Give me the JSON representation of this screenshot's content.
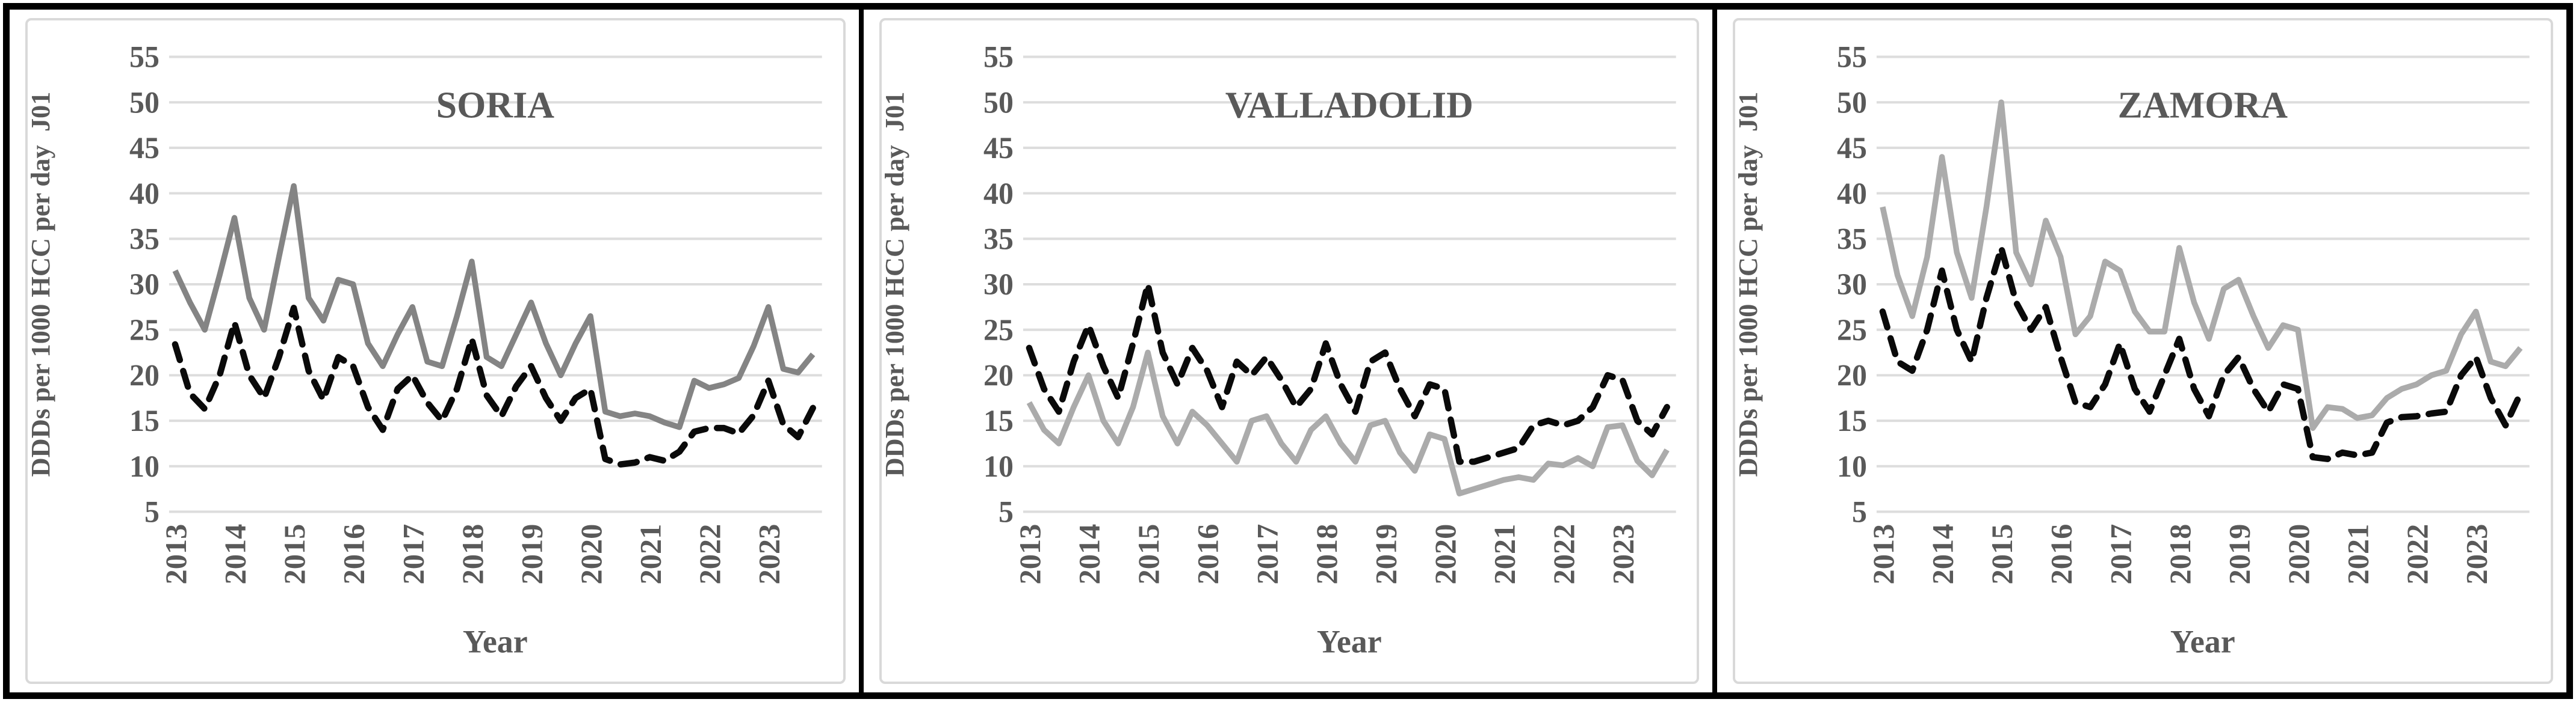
{
  "figure": {
    "background": "#ffffff",
    "outer_border_color": "#000000",
    "panel_frame_color": "#d9d9d9",
    "gridline_color": "#dddddd",
    "text_color": "#595959"
  },
  "chart_data": [
    {
      "type": "line",
      "title": "SORIA",
      "x_axis_title": "Year",
      "y_axis_title": "DDDs per 1000 HCC per day  J01",
      "ylim": [
        5,
        55
      ],
      "y_ticks": [
        55,
        50,
        45,
        40,
        35,
        30,
        25,
        20,
        15,
        10,
        5
      ],
      "x_tick_labels": [
        "2013",
        "2014",
        "2015",
        "2016",
        "2017",
        "2018",
        "2019",
        "2020",
        "2021",
        "2022",
        "2023"
      ],
      "points_per_year": 4,
      "grid": true,
      "legend_position": "none",
      "series": [
        {
          "name": "solid-gray-line",
          "line_style": "solid",
          "color": "#848484",
          "values": [
            31.5,
            28,
            25,
            31,
            37.3,
            28.5,
            25,
            33,
            40.8,
            28.5,
            26,
            30.5,
            30,
            23.5,
            21,
            24.5,
            27.5,
            21.5,
            21,
            26.5,
            32.5,
            22,
            21,
            24.5,
            28,
            23.5,
            20,
            23.5,
            26.5,
            16,
            15.5,
            15.8,
            15.5,
            14.8,
            14.3,
            19.4,
            18.6,
            19,
            19.7,
            23.2,
            27.5,
            20.7,
            20.3,
            22.3
          ]
        },
        {
          "name": "dashed-black-line",
          "line_style": "dashed",
          "color": "#0a0a0a",
          "values": [
            23.4,
            18,
            16.3,
            20,
            25.8,
            20,
            17.5,
            22,
            27.4,
            20.5,
            17.3,
            22,
            21,
            16.5,
            14,
            18.5,
            20,
            17,
            15,
            18.5,
            24,
            17.8,
            15.5,
            18.8,
            21,
            17.5,
            15,
            17.5,
            18.5,
            10.8,
            10.2,
            10.4,
            11,
            10.6,
            11.6,
            13.8,
            14.2,
            14.2,
            13.6,
            15.6,
            19.4,
            14.6,
            13.2,
            16.4
          ]
        }
      ]
    },
    {
      "type": "line",
      "title": "VALLADOLID",
      "x_axis_title": "Year",
      "y_axis_title": "DDDs per 1000 HCC per day  J01",
      "ylim": [
        5,
        55
      ],
      "y_ticks": [
        55,
        50,
        45,
        40,
        35,
        30,
        25,
        20,
        15,
        10,
        5
      ],
      "x_tick_labels": [
        "2013",
        "2014",
        "2015",
        "2016",
        "2017",
        "2018",
        "2019",
        "2020",
        "2021",
        "2022",
        "2023"
      ],
      "points_per_year": 4,
      "grid": true,
      "legend_position": "none",
      "series": [
        {
          "name": "solid-gray-line",
          "line_style": "solid",
          "color": "#ababab",
          "values": [
            17,
            14,
            12.5,
            16.5,
            20,
            15,
            12.5,
            16.5,
            22.5,
            15.5,
            12.5,
            16,
            14.5,
            12.5,
            10.5,
            15,
            15.5,
            12.5,
            10.5,
            14,
            15.5,
            12.5,
            10.5,
            14.5,
            15,
            11.5,
            9.5,
            13.5,
            13,
            7,
            7.5,
            8,
            8.5,
            8.8,
            8.5,
            10.3,
            10.1,
            10.9,
            10,
            14.3,
            14.5,
            10.6,
            9,
            11.8
          ]
        },
        {
          "name": "dashed-black-line",
          "line_style": "dashed",
          "color": "#0a0a0a",
          "values": [
            23,
            18.5,
            16,
            21.5,
            25.5,
            21,
            17.5,
            23.5,
            30,
            22.5,
            19,
            23,
            20.5,
            16.5,
            21.5,
            20,
            22,
            19.5,
            16.5,
            18.5,
            23.5,
            19,
            16,
            21.5,
            22.5,
            18.5,
            15.5,
            19,
            18.5,
            10.5,
            10.5,
            11,
            11.5,
            12,
            14.5,
            15,
            14.5,
            15,
            16.5,
            20,
            19.5,
            15,
            13.5,
            16.5
          ]
        }
      ]
    },
    {
      "type": "line",
      "title": "ZAMORA",
      "x_axis_title": "Year",
      "y_axis_title": "DDDs per 1000 HCC per day  J01",
      "ylim": [
        5,
        55
      ],
      "y_ticks": [
        55,
        50,
        45,
        40,
        35,
        30,
        25,
        20,
        15,
        10,
        5
      ],
      "x_tick_labels": [
        "2013",
        "2014",
        "2015",
        "2016",
        "2017",
        "2018",
        "2019",
        "2020",
        "2021",
        "2022",
        "2023"
      ],
      "points_per_year": 4,
      "grid": true,
      "legend_position": "none",
      "series": [
        {
          "name": "solid-gray-line",
          "line_style": "solid",
          "color": "#ababab",
          "values": [
            38.5,
            31,
            26.5,
            33,
            44,
            33.5,
            28.5,
            38.5,
            50,
            33.5,
            30,
            37,
            33,
            24.5,
            26.5,
            32.5,
            31.5,
            27,
            24.8,
            24.8,
            34,
            28,
            24,
            29.5,
            30.5,
            26.5,
            23,
            25.5,
            25,
            14.2,
            16.5,
            16.3,
            15.3,
            15.6,
            17.5,
            18.5,
            19,
            20,
            20.5,
            24.5,
            27,
            21.5,
            21,
            23
          ]
        },
        {
          "name": "dashed-black-line",
          "line_style": "dashed",
          "color": "#0a0a0a",
          "values": [
            27,
            21.5,
            20.5,
            25,
            31.5,
            25,
            21.5,
            28.5,
            34,
            28,
            25,
            27.5,
            22,
            17,
            16.5,
            19,
            23.5,
            18.5,
            16,
            20,
            24,
            18.5,
            15.5,
            20,
            22,
            18.5,
            16,
            19,
            18.5,
            11,
            10.8,
            11.5,
            11.2,
            11.5,
            14.8,
            15.4,
            15.5,
            15.8,
            16,
            20,
            22,
            17.5,
            14.5,
            18
          ]
        }
      ]
    }
  ]
}
